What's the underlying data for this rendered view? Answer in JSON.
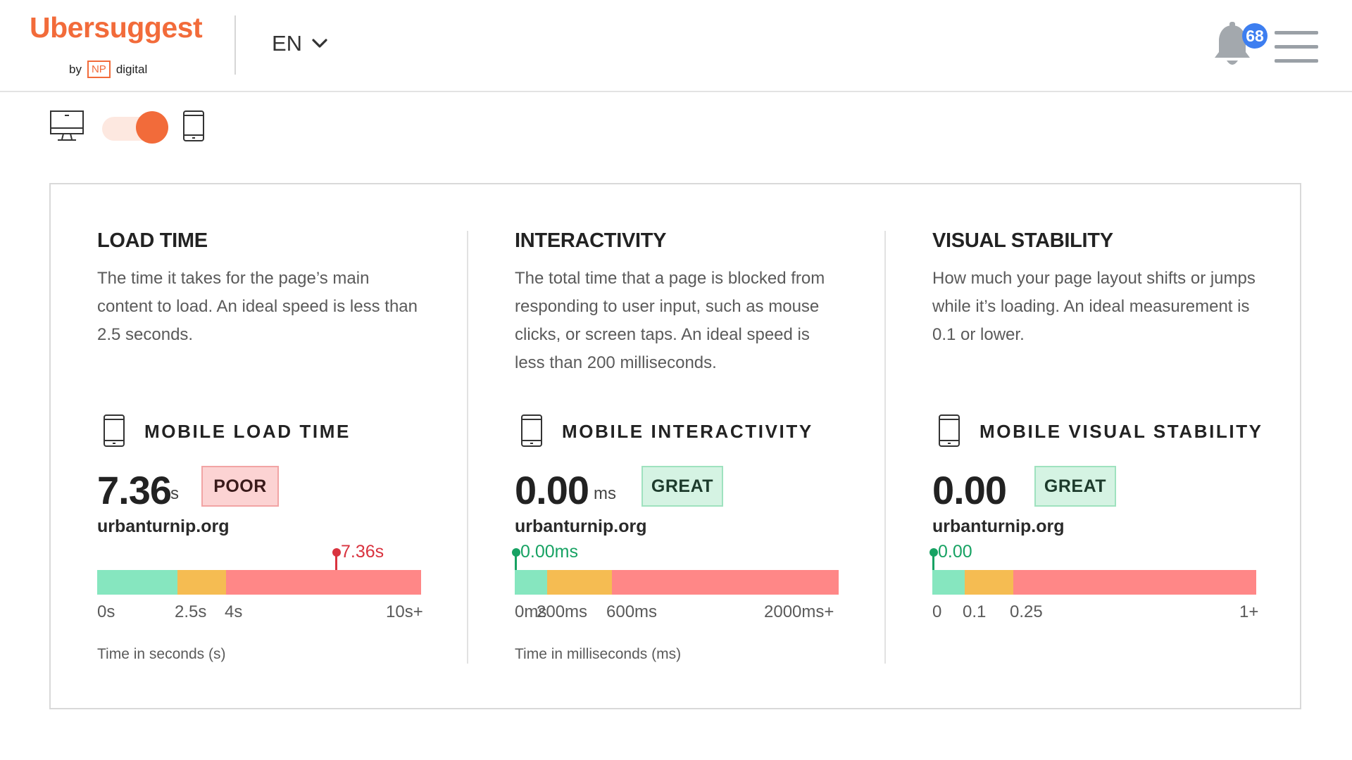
{
  "header": {
    "logo_text": "Ubersuggest",
    "logo_by": "by",
    "logo_np": "NP",
    "logo_digital": "digital",
    "language": "EN",
    "notification_count": "68",
    "bell_icon": "bell-icon",
    "menu_icon": "hamburger-menu-icon",
    "brand_color": "#f26b3a"
  },
  "device_toggle": {
    "desktop_icon": "desktop-monitor-icon",
    "mobile_icon": "mobile-phone-icon",
    "selected": "mobile"
  },
  "colors": {
    "good": "#86e6bf",
    "needs_improvement": "#f5bc52",
    "poor": "#ff8787",
    "marker_poor": "#d9333f",
    "marker_good": "#17a263"
  },
  "columns": [
    {
      "title": "LOAD TIME",
      "description": "The time it takes for the page’s main content to load. An ideal speed is less than 2.5 seconds.",
      "metric_title": "MOBILE LOAD TIME",
      "value": "7.36",
      "unit": "s",
      "status": "POOR",
      "domain": "urbanturnip.org",
      "marker_label": "7.36s",
      "ticks": [
        "0s",
        "2.5s",
        "4s",
        "10s+"
      ],
      "axis_note": "Time in seconds (s)"
    },
    {
      "title": "INTERACTIVITY",
      "description": "The total time that a page is blocked from responding to user input, such as mouse clicks, or screen taps. An ideal speed is less than 200 milliseconds.",
      "metric_title": "MOBILE INTERACTIVITY",
      "value": "0.00",
      "unit": "ms",
      "status": "GREAT",
      "domain": "urbanturnip.org",
      "marker_label": "0.00ms",
      "ticks": [
        "0ms",
        "200ms",
        "600ms",
        "2000ms+"
      ],
      "axis_note": "Time in milliseconds (ms)"
    },
    {
      "title": "VISUAL STABILITY",
      "description": "How much your page layout shifts or jumps while it’s loading. An ideal measurement is 0.1 or lower.",
      "metric_title": "MOBILE VISUAL STABILITY",
      "value": "0.00",
      "unit": "",
      "status": "GREAT",
      "domain": "urbanturnip.org",
      "marker_label": "0.00",
      "ticks": [
        "0",
        "0.1",
        "0.25",
        "1+"
      ],
      "axis_note": ""
    }
  ]
}
